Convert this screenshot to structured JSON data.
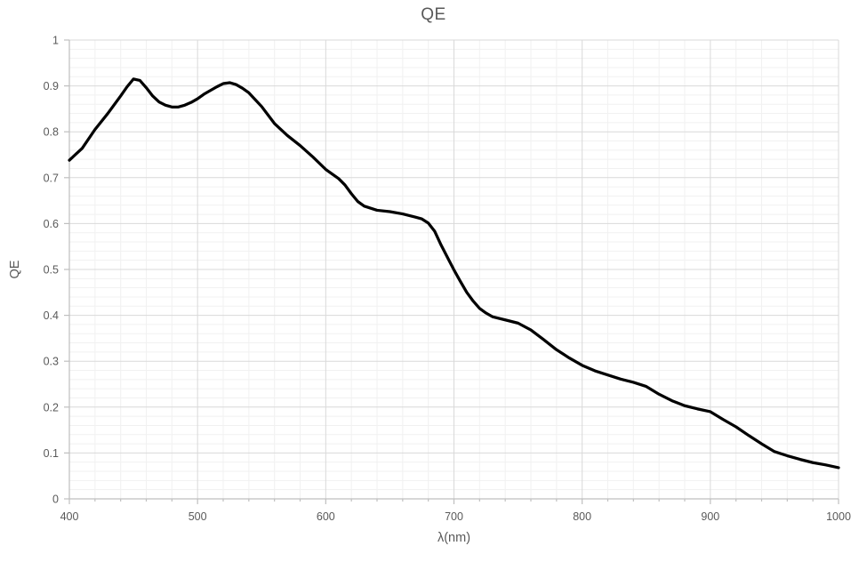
{
  "page": {
    "background": "#ffffff"
  },
  "chart": {
    "title": "QE",
    "x_axis": {
      "title": "λ(nm)",
      "min": 400,
      "max": 1000,
      "major_step": 100,
      "minor_step": 20,
      "tick_values": [
        400,
        500,
        600,
        700,
        800,
        900,
        1000
      ],
      "tick_labels": [
        "400",
        "500",
        "600",
        "700",
        "800",
        "900",
        "1000"
      ]
    },
    "y_axis": {
      "title": "QE",
      "min": 0,
      "max": 1,
      "major_step": 0.1,
      "minor_step": 0.02,
      "tick_values": [
        0,
        0.1,
        0.2,
        0.3,
        0.4,
        0.5,
        0.6,
        0.7,
        0.8,
        0.9,
        1
      ],
      "tick_labels": [
        "0",
        "0.1",
        "0.2",
        "0.3",
        "0.4",
        "0.5",
        "0.6",
        "0.7",
        "0.8",
        "0.9",
        "1"
      ]
    },
    "style": {
      "text_color": "#595959",
      "title_color": "#595959",
      "axis_line_color": "#bfbfbf",
      "major_grid_color": "#d9d9d9",
      "minor_grid_color": "#f1f1f1",
      "series_color": "#000000",
      "background": "#ffffff"
    }
  },
  "chart_data": {
    "type": "line",
    "title": "QE",
    "xlabel": "λ(nm)",
    "ylabel": "QE",
    "xlim": [
      400,
      1000
    ],
    "ylim": [
      0,
      1
    ],
    "grid": true,
    "minor_grid": true,
    "legend": false,
    "series": [
      {
        "name": "QE",
        "color": "#000000",
        "x": [
          400,
          405,
          410,
          420,
          430,
          440,
          445,
          450,
          455,
          460,
          465,
          470,
          475,
          480,
          485,
          490,
          495,
          500,
          505,
          510,
          515,
          520,
          525,
          530,
          535,
          540,
          550,
          560,
          570,
          580,
          590,
          600,
          610,
          615,
          620,
          625,
          630,
          640,
          650,
          660,
          670,
          675,
          680,
          685,
          690,
          695,
          700,
          705,
          710,
          715,
          720,
          725,
          730,
          740,
          750,
          760,
          770,
          780,
          790,
          800,
          810,
          820,
          830,
          840,
          850,
          860,
          870,
          880,
          890,
          900,
          910,
          920,
          930,
          940,
          950,
          960,
          970,
          980,
          990,
          1000
        ],
        "y": [
          0.738,
          0.751,
          0.764,
          0.805,
          0.84,
          0.878,
          0.898,
          0.915,
          0.912,
          0.896,
          0.878,
          0.865,
          0.858,
          0.854,
          0.854,
          0.858,
          0.864,
          0.872,
          0.882,
          0.89,
          0.898,
          0.905,
          0.907,
          0.903,
          0.895,
          0.885,
          0.855,
          0.818,
          0.792,
          0.77,
          0.745,
          0.718,
          0.698,
          0.684,
          0.665,
          0.648,
          0.638,
          0.629,
          0.626,
          0.621,
          0.614,
          0.61,
          0.601,
          0.583,
          0.553,
          0.526,
          0.499,
          0.474,
          0.45,
          0.431,
          0.415,
          0.405,
          0.397,
          0.39,
          0.383,
          0.368,
          0.347,
          0.325,
          0.307,
          0.291,
          0.279,
          0.27,
          0.261,
          0.254,
          0.245,
          0.228,
          0.214,
          0.203,
          0.196,
          0.19,
          0.173,
          0.157,
          0.138,
          0.12,
          0.103,
          0.094,
          0.086,
          0.079,
          0.074,
          0.068
        ]
      }
    ]
  }
}
